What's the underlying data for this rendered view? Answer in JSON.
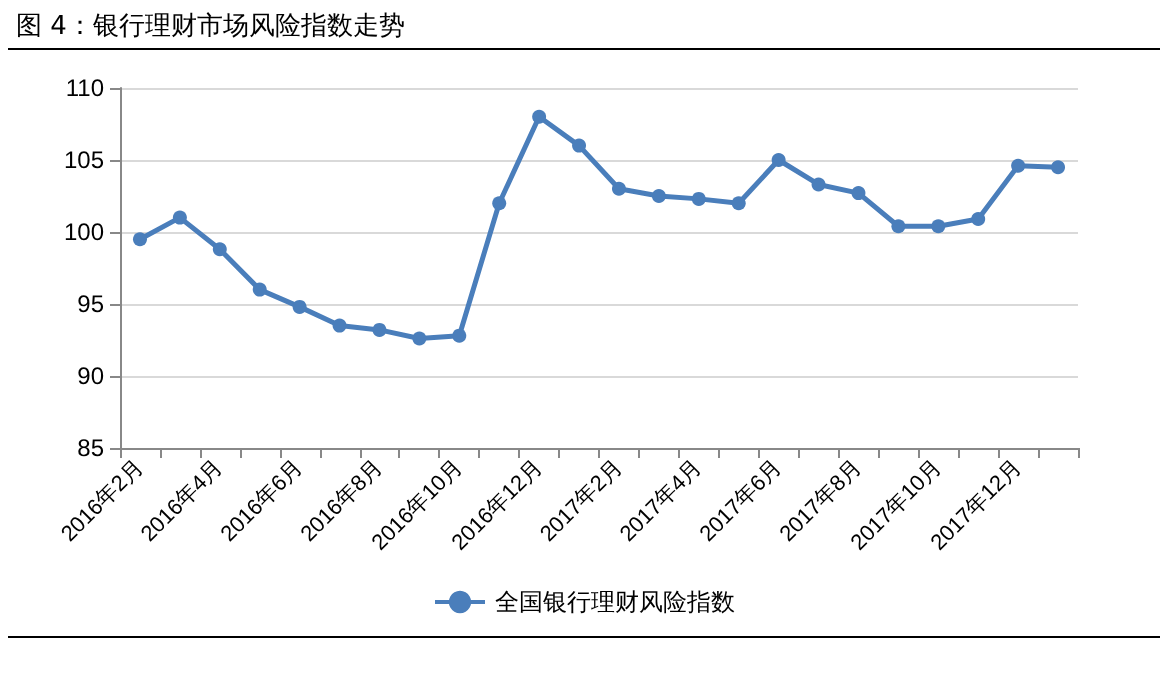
{
  "chart_data": {
    "type": "line",
    "title": "图 4：银行理财市场风险指数走势",
    "categories": [
      "2016年2月",
      null,
      "2016年4月",
      null,
      "2016年6月",
      null,
      "2016年8月",
      null,
      "2016年10月",
      null,
      "2016年12月",
      null,
      "2017年2月",
      null,
      "2017年4月",
      null,
      "2017年6月",
      null,
      "2017年8月",
      null,
      "2017年10月",
      null,
      "2017年12月",
      null
    ],
    "series": [
      {
        "name": "全国银行理财风险指数",
        "color": "#4a7ebb",
        "values": [
          99.5,
          101,
          98.8,
          96,
          94.8,
          93.5,
          93.2,
          92.6,
          92.8,
          102,
          108,
          106,
          103,
          102.5,
          102.3,
          102,
          105,
          103.3,
          102.7,
          100.4,
          100.4,
          100.9,
          104.6,
          104.5
        ]
      }
    ],
    "ylim": [
      85,
      110
    ],
    "yticks": [
      85,
      90,
      95,
      100,
      105,
      110
    ],
    "grid": "y",
    "legend": "bottom",
    "marker": "circle",
    "line_style": "solid"
  }
}
